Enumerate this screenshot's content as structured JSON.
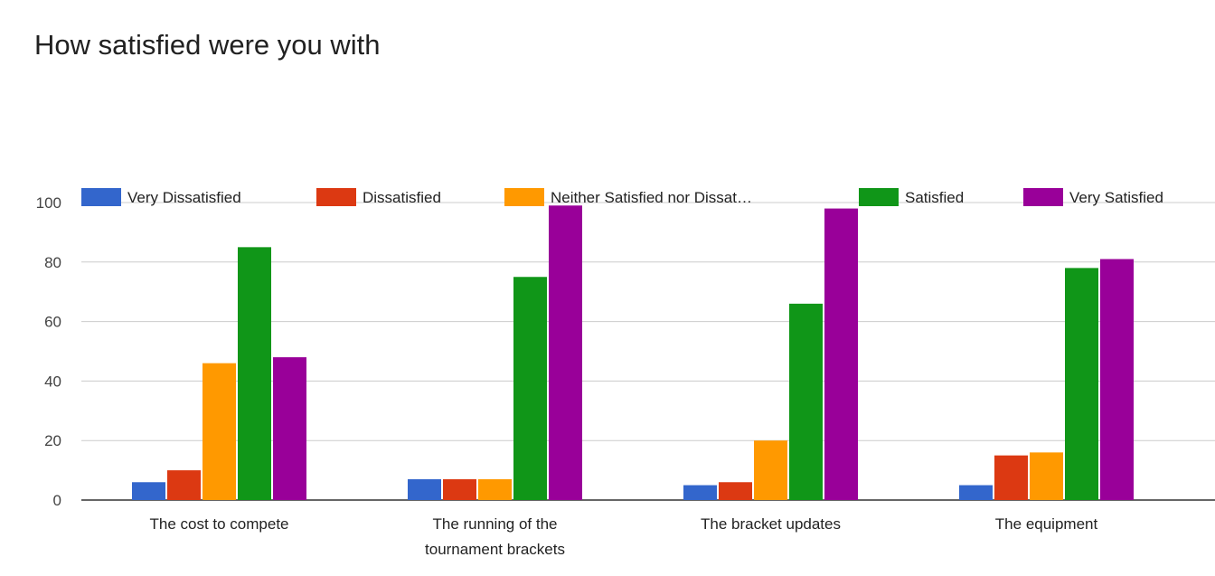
{
  "chart_data": {
    "type": "bar",
    "title": "How satisfied were you with",
    "categories": [
      [
        "The cost to compete"
      ],
      [
        "The running of the",
        "tournament brackets"
      ],
      [
        "The bracket updates"
      ],
      [
        "The equipment"
      ]
    ],
    "series": [
      {
        "name": "Very Dissatisfied",
        "color": "#3366cc",
        "values": [
          6,
          7,
          5,
          5
        ]
      },
      {
        "name": "Dissatisfied",
        "color": "#dc3912",
        "values": [
          10,
          7,
          6,
          15
        ]
      },
      {
        "name": "Neither Satisfied nor Dissat…",
        "color": "#ff9900",
        "values": [
          46,
          7,
          20,
          16
        ]
      },
      {
        "name": "Satisfied",
        "color": "#109618",
        "values": [
          85,
          75,
          66,
          78
        ]
      },
      {
        "name": "Very Satisfied",
        "color": "#990099",
        "values": [
          48,
          99,
          98,
          81
        ]
      }
    ],
    "ylim": [
      0,
      100
    ],
    "yticks": [
      0,
      20,
      40,
      60,
      80,
      100
    ],
    "xlabel": "",
    "ylabel": "",
    "grid": true,
    "legend_position": "top"
  }
}
